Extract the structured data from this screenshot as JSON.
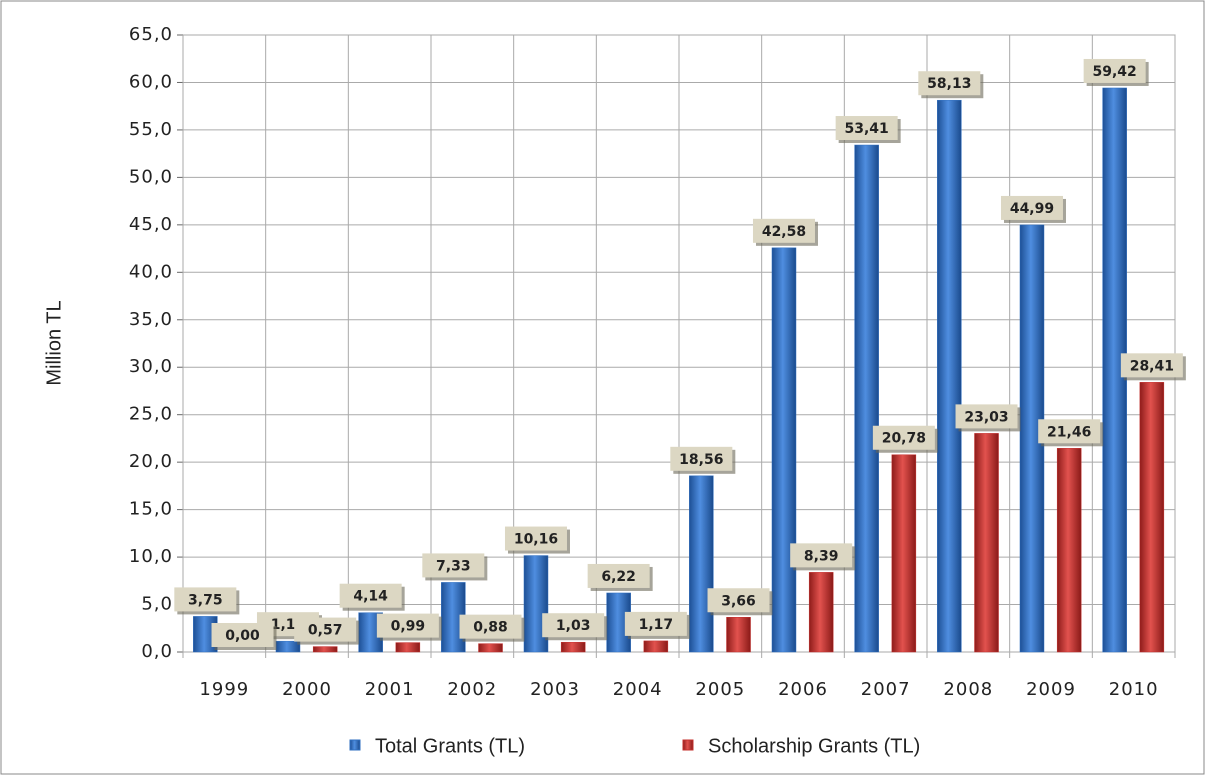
{
  "chart_data": {
    "type": "bar",
    "y_label": "Million TL",
    "categories": [
      "1999",
      "2000",
      "2001",
      "2002",
      "2003",
      "2004",
      "2005",
      "2006",
      "2007",
      "2008",
      "2009",
      "2010"
    ],
    "series": [
      {
        "name": "Total Grants (TL)",
        "color": "#2f6fc0",
        "values": [
          3.75,
          1.14,
          4.14,
          7.33,
          10.16,
          6.22,
          18.56,
          42.58,
          53.41,
          58.13,
          44.99,
          59.42
        ],
        "value_labels": [
          "3,75",
          "1,14",
          "4,14",
          "7,33",
          "10,16",
          "6,22",
          "18,56",
          "42,58",
          "53,41",
          "58,13",
          "44,99",
          "59,42"
        ]
      },
      {
        "name": "Scholarship Grants (TL)",
        "color": "#c4302e",
        "values": [
          0.0,
          0.57,
          0.99,
          0.88,
          1.03,
          1.17,
          3.66,
          8.39,
          20.78,
          23.03,
          21.46,
          28.41
        ],
        "value_labels": [
          "0,00",
          "0,57",
          "0,99",
          "0,88",
          "1,03",
          "1,17",
          "3,66",
          "8,39",
          "20,78",
          "23,03",
          "21,46",
          "28,41"
        ]
      }
    ],
    "ylim": [
      0,
      65
    ],
    "yticks": [
      {
        "value": 0,
        "label": "0,0"
      },
      {
        "value": 5,
        "label": "5,0"
      },
      {
        "value": 10,
        "label": "10,0"
      },
      {
        "value": 15,
        "label": "15,0"
      },
      {
        "value": 20,
        "label": "20,0"
      },
      {
        "value": 25,
        "label": "25,0"
      },
      {
        "value": 30,
        "label": "30,0"
      },
      {
        "value": 35,
        "label": "35,0"
      },
      {
        "value": 40,
        "label": "40,0"
      },
      {
        "value": 45,
        "label": "45,0"
      },
      {
        "value": 50,
        "label": "50,0"
      },
      {
        "value": 55,
        "label": "55,0"
      },
      {
        "value": 60,
        "label": "60,0"
      },
      {
        "value": 65,
        "label": "65,0"
      }
    ],
    "grid": true,
    "legend": "bottom"
  }
}
